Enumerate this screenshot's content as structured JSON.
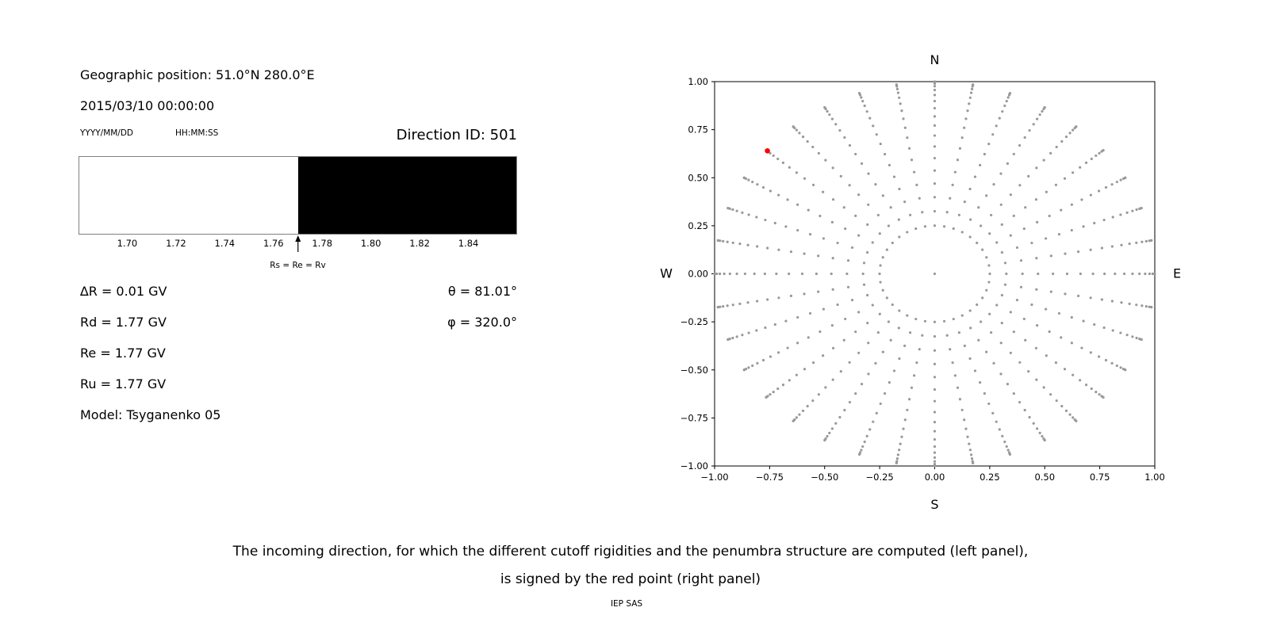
{
  "left_panel": {
    "geo_position": "Geographic position: 51.0°N 280.0°E",
    "datetime": "2015/03/10 00:00:00",
    "date_format_label": "YYYY/MM/DD",
    "time_format_label": "HH:MM:SS",
    "direction_id": "Direction ID: 501",
    "rigidities": [
      "∆R = 0.01 GV",
      "Rd = 1.77 GV",
      "Re = 1.77 GV",
      "Ru = 1.77 GV"
    ],
    "model": "Model: Tsyganenko 05",
    "theta": "θ = 81.01°",
    "phi": "φ = 320.0°"
  },
  "caption": {
    "line1": "The incoming direction, for which the different cutoff rigidities and the penumbra structure are computed (left panel),",
    "line2": "is signed by the red point (right panel)",
    "credit": "IEP SAS"
  },
  "chart_data": [
    {
      "type": "area",
      "name": "penumbra-structure",
      "unit": "GV",
      "xlim": [
        1.68,
        1.86
      ],
      "xticks": [
        1.7,
        1.72,
        1.74,
        1.76,
        1.78,
        1.8,
        1.82,
        1.84
      ],
      "segments": [
        {
          "from": 1.68,
          "to": 1.77,
          "color": "#ffffff",
          "meaning": "allowed"
        },
        {
          "from": 1.77,
          "to": 1.86,
          "color": "#000000",
          "meaning": "forbidden"
        }
      ],
      "marker": {
        "x": 1.77,
        "label": "Rs = Re = Rv"
      }
    },
    {
      "type": "scatter",
      "name": "incoming-direction-grid",
      "xlim": [
        -1,
        1
      ],
      "ylim": [
        -1,
        1
      ],
      "xticks": [
        -1.0,
        -0.75,
        -0.5,
        -0.25,
        0.0,
        0.25,
        0.5,
        0.75,
        1.0
      ],
      "yticks": [
        -1.0,
        -0.75,
        -0.5,
        -0.25,
        0.0,
        0.25,
        0.5,
        0.75,
        1.0
      ],
      "grid": false,
      "compass_labels": {
        "top": "N",
        "bottom": "S",
        "left": "W",
        "right": "E"
      },
      "grid_points": {
        "description": "radial grid of incoming directions; radius = sin(zenith), azimuth clockwise from N",
        "azimuth_start_deg": 0,
        "azimuth_step_deg": 10,
        "azimuth_count": 36,
        "zenith_deg": [
          14.5,
          19,
          23.5,
          28,
          32.5,
          37,
          41.5,
          46,
          50.5,
          55,
          59.5,
          64,
          68.5,
          73,
          77.5,
          82,
          86.5,
          90
        ],
        "center_dot": true,
        "color": "#999999"
      },
      "red_point": {
        "x": -0.76,
        "y": 0.64,
        "theta_deg": 81.01,
        "phi_deg": 320.0,
        "color": "#ff0000"
      }
    }
  ]
}
